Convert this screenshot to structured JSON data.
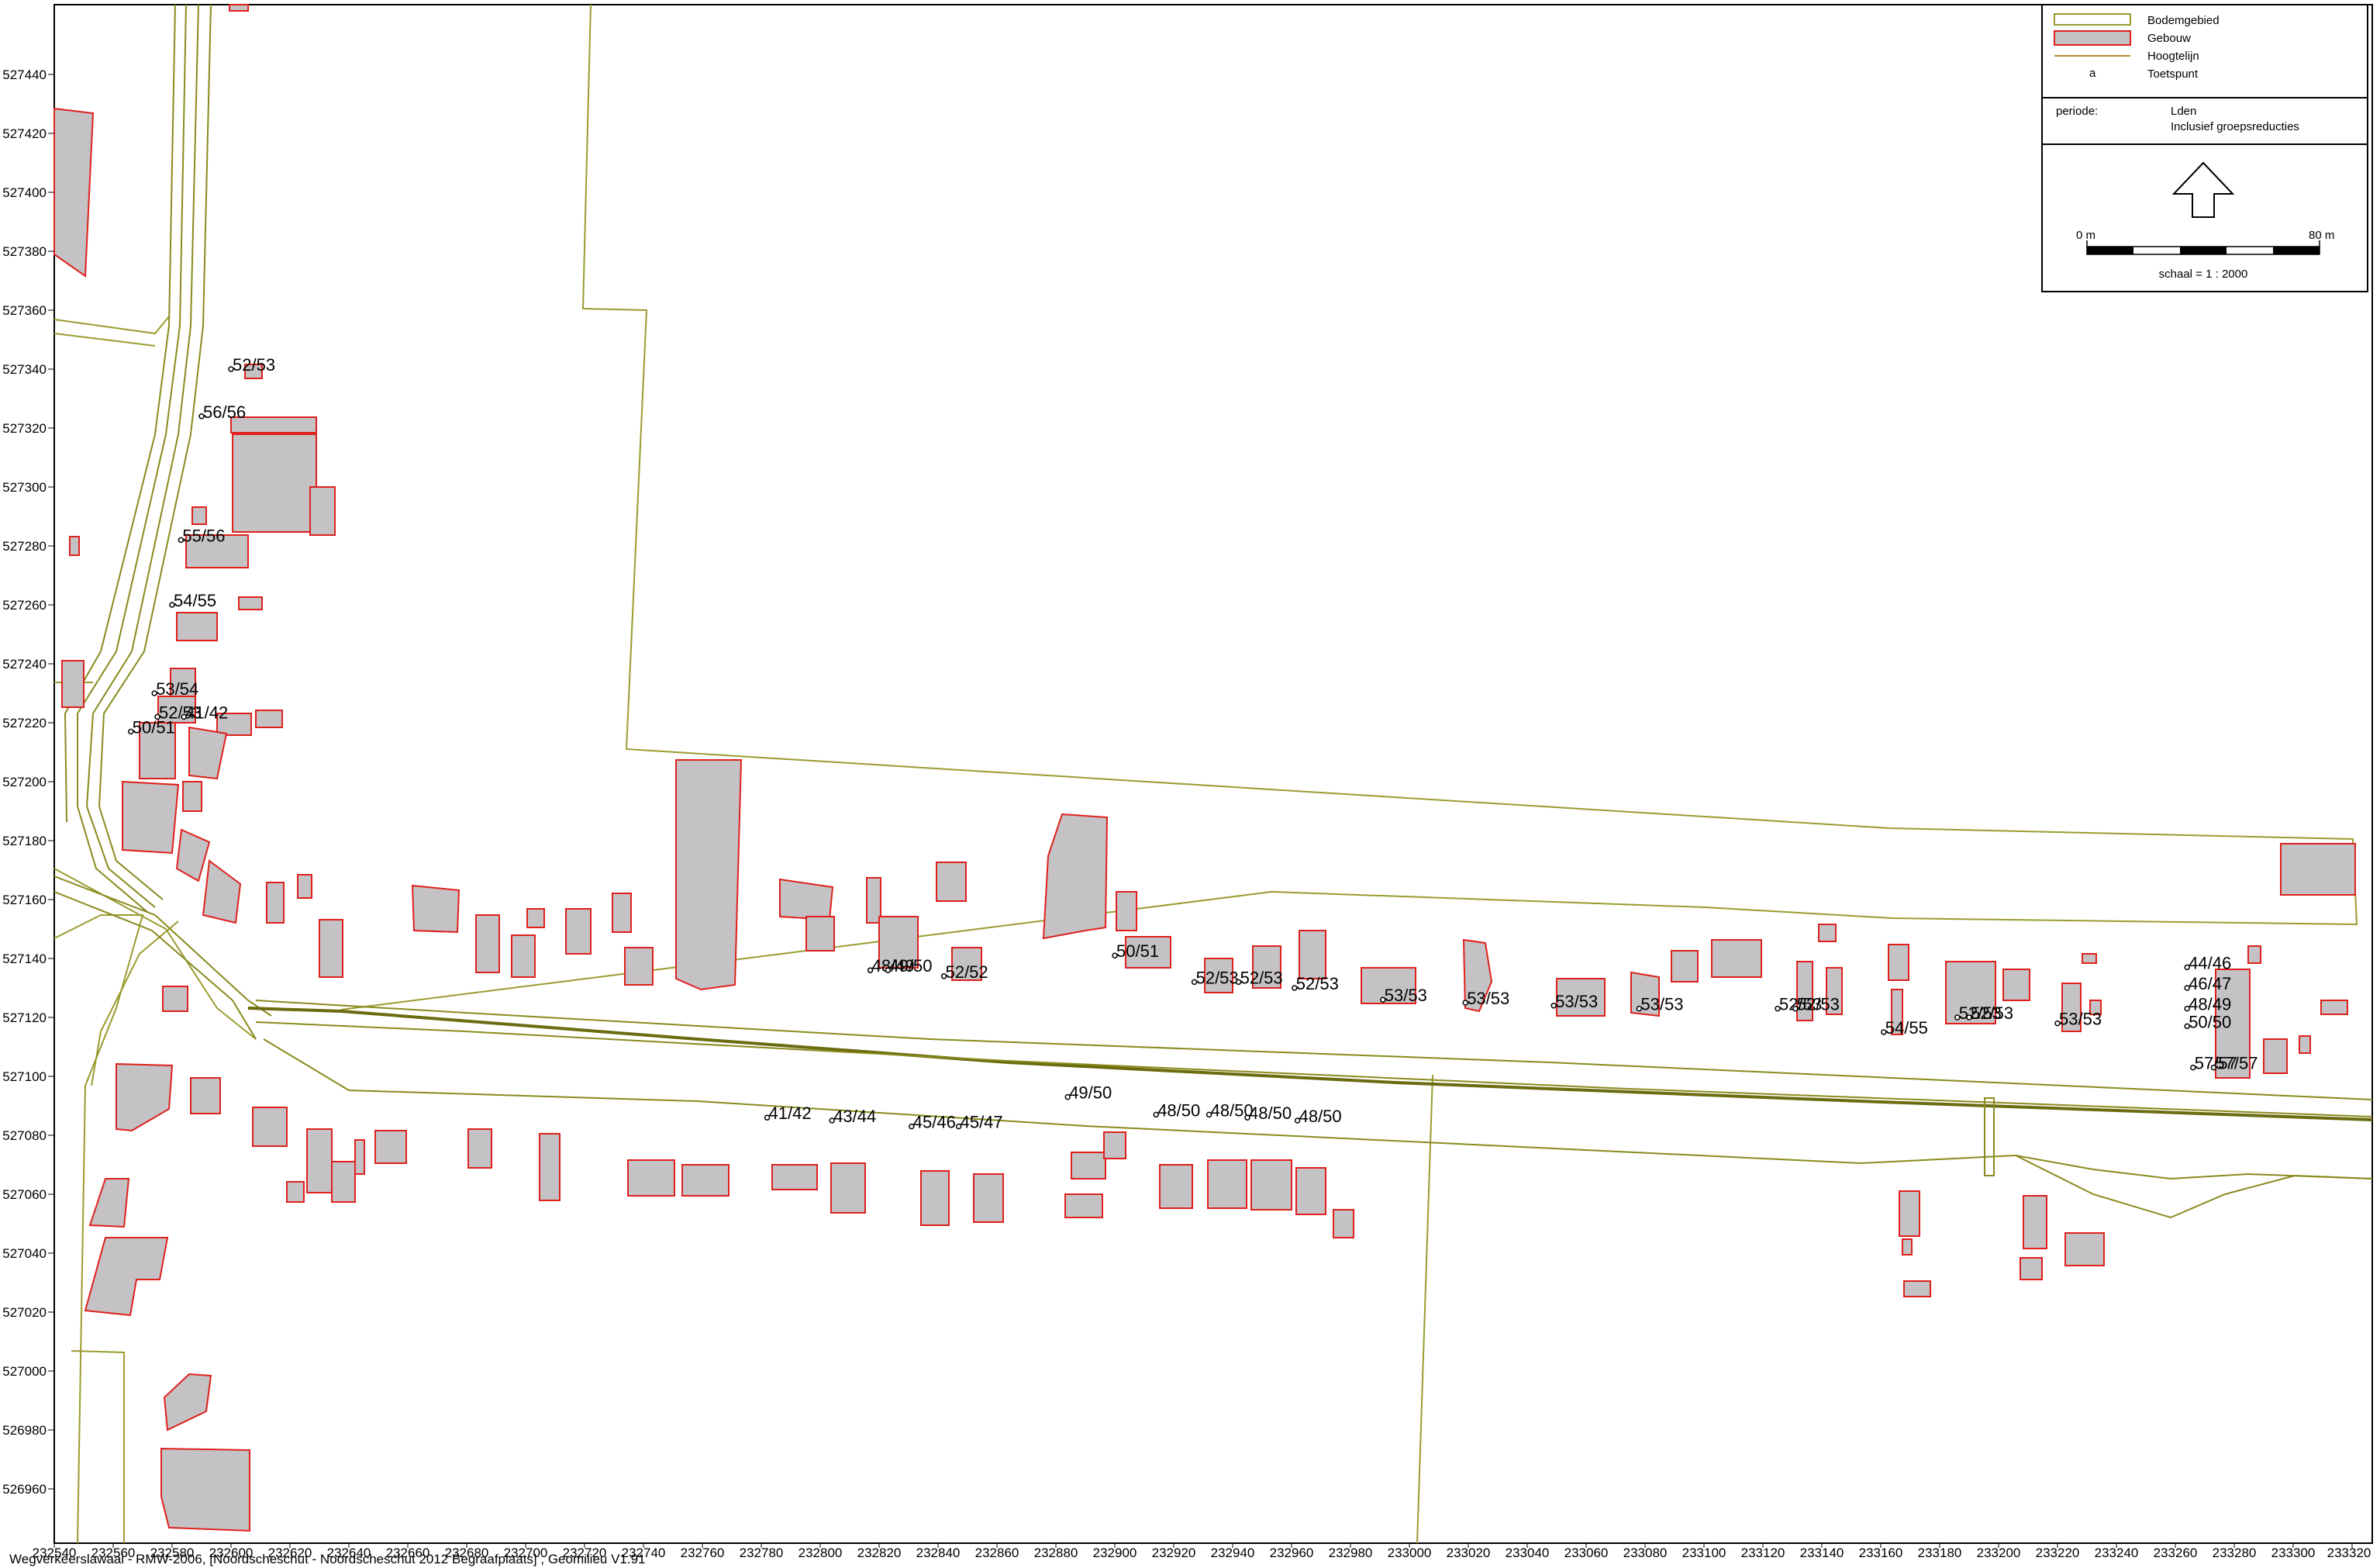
{
  "legend": {
    "items": [
      {
        "label": "Bodemgebied",
        "kind": "area",
        "color": "#9b9b30"
      },
      {
        "label": "Gebouw",
        "kind": "building",
        "color": "#e0201c"
      },
      {
        "label": "Hoogtelijn",
        "kind": "line",
        "color": "#b98b2c"
      },
      {
        "label": "Toetspunt",
        "kind": "point",
        "symbol": "a"
      }
    ],
    "periode_label": "periode:",
    "periode_value": "Lden",
    "periode_note": "Inclusief groepsreducties",
    "north_arrow": "north-arrow-icon",
    "scale_start": "0 m",
    "scale_end": "80 m",
    "scale_text": "schaal = 1 : 2000"
  },
  "axes": {
    "y_ticks": [
      "527440",
      "527420",
      "527400",
      "527380",
      "527360",
      "527340",
      "527320",
      "527300",
      "527280",
      "527260",
      "527240",
      "527220",
      "527200",
      "527180",
      "527160",
      "527140",
      "527120",
      "527100",
      "527080",
      "527060",
      "527040",
      "527020",
      "527000",
      "526980",
      "526960"
    ],
    "x_ticks": [
      "232540",
      "232560",
      "232580",
      "232600",
      "232620",
      "232640",
      "232660",
      "232680",
      "232700",
      "232720",
      "232740",
      "232760",
      "232780",
      "232800",
      "232820",
      "232840",
      "232860",
      "232880",
      "232900",
      "232920",
      "232940",
      "232960",
      "232980",
      "233000",
      "233020",
      "233040",
      "233060",
      "233080",
      "233100",
      "233120",
      "233140",
      "233160",
      "233180",
      "233200",
      "233220",
      "233240",
      "233260",
      "233280",
      "233300",
      "233320"
    ]
  },
  "receptor_labels": [
    {
      "text": "52/53",
      "x": 232600,
      "y": 527340
    },
    {
      "text": "56/56",
      "x": 232590,
      "y": 527324
    },
    {
      "text": "55/56",
      "x": 232583,
      "y": 527282
    },
    {
      "text": "54/55",
      "x": 232580,
      "y": 527260
    },
    {
      "text": "53/54",
      "x": 232574,
      "y": 527230
    },
    {
      "text": "52/53",
      "x": 232575,
      "y": 527222
    },
    {
      "text": "41/42",
      "x": 232584,
      "y": 527222
    },
    {
      "text": "50/51",
      "x": 232566,
      "y": 527217
    },
    {
      "text": "48/49",
      "x": 232817,
      "y": 527136
    },
    {
      "text": "49/50",
      "x": 232823,
      "y": 527136
    },
    {
      "text": "52/52",
      "x": 232842,
      "y": 527134
    },
    {
      "text": "50/51",
      "x": 232900,
      "y": 527141
    },
    {
      "text": "52/53",
      "x": 232927,
      "y": 527132
    },
    {
      "text": "52/53",
      "x": 232942,
      "y": 527132
    },
    {
      "text": "52/53",
      "x": 232961,
      "y": 527130
    },
    {
      "text": "53/53",
      "x": 232991,
      "y": 527126
    },
    {
      "text": "53/53",
      "x": 233019,
      "y": 527125
    },
    {
      "text": "53/53",
      "x": 233049,
      "y": 527124
    },
    {
      "text": "53/53",
      "x": 233078,
      "y": 527123
    },
    {
      "text": "52/53",
      "x": 233125,
      "y": 527123
    },
    {
      "text": "52/53",
      "x": 233131,
      "y": 527123
    },
    {
      "text": "54/55",
      "x": 233161,
      "y": 527115
    },
    {
      "text": "52/53",
      "x": 233186,
      "y": 527120
    },
    {
      "text": "52/53",
      "x": 233190,
      "y": 527120
    },
    {
      "text": "53/53",
      "x": 233220,
      "y": 527118
    },
    {
      "text": "44/46",
      "x": 233264,
      "y": 527137
    },
    {
      "text": "46/47",
      "x": 233264,
      "y": 527130
    },
    {
      "text": "48/49",
      "x": 233264,
      "y": 527123
    },
    {
      "text": "50/50",
      "x": 233264,
      "y": 527117
    },
    {
      "text": "57/57",
      "x": 233266,
      "y": 527103
    },
    {
      "text": "57/57",
      "x": 233273,
      "y": 527103
    },
    {
      "text": "41/42",
      "x": 232782,
      "y": 527086
    },
    {
      "text": "43/44",
      "x": 232804,
      "y": 527085
    },
    {
      "text": "45/46",
      "x": 232831,
      "y": 527083
    },
    {
      "text": "45/47",
      "x": 232847,
      "y": 527083
    },
    {
      "text": "49/50",
      "x": 232884,
      "y": 527093
    },
    {
      "text": "48/50",
      "x": 232914,
      "y": 527087
    },
    {
      "text": "48/50",
      "x": 232932,
      "y": 527087
    },
    {
      "text": "48/50",
      "x": 232945,
      "y": 527086
    },
    {
      "text": "48/50",
      "x": 232962,
      "y": 527085
    }
  ],
  "footer": "Wegverkeerslawaai - RMW-2006, [Noordscheschut - Noordscheschut 2012 Begraafplaats] , Geomilieu V1.91"
}
